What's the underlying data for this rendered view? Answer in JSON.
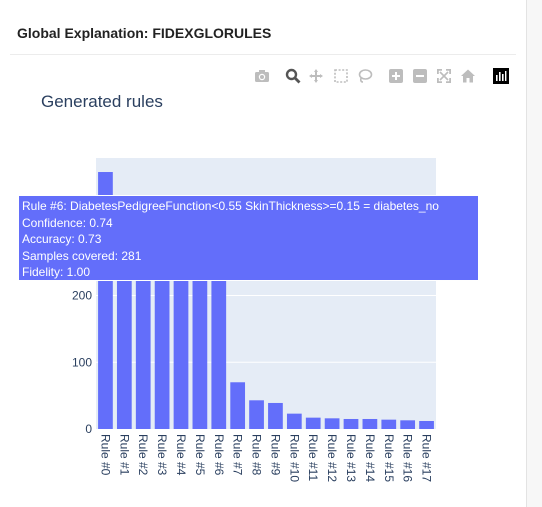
{
  "card": {
    "title": "Global Explanation: FIDEXGLORULES"
  },
  "toolbar": {
    "icons": [
      "camera-icon",
      "zoom-icon",
      "pan-icon",
      "box-select-icon",
      "lasso-icon",
      "zoom-in-icon",
      "zoom-out-icon",
      "autoscale-icon",
      "reset-axes-icon",
      "plotly-logo-icon"
    ]
  },
  "tooltip": {
    "rule": "Rule #6: DiabetesPedigreeFunction<0.55 SkinThickness>=0.15  = diabetes_no",
    "confidence": "Confidence: 0.74",
    "accuracy": "Accuracy: 0.73",
    "samples": "Samples covered: 281",
    "fidelity": "Fidelity: 1.00"
  },
  "chart_data": {
    "type": "bar",
    "title": "Generated rules",
    "categories": [
      "Rule #0",
      "Rule #1",
      "Rule #2",
      "Rule #3",
      "Rule #4",
      "Rule #5",
      "Rule #6",
      "Rule #7",
      "Rule #8",
      "Rule #9",
      "Rule #10",
      "Rule #11",
      "Rule #12",
      "Rule #13",
      "Rule #14",
      "Rule #15",
      "Rule #16",
      "Rule #17"
    ],
    "values": [
      385,
      281,
      281,
      281,
      281,
      281,
      281,
      70,
      43,
      39,
      23,
      17,
      16,
      15,
      15,
      14,
      13,
      12
    ],
    "yticks": [
      0,
      100,
      200
    ],
    "ylim": [
      0,
      406
    ],
    "xlabel": "",
    "ylabel": "",
    "grid": true,
    "colors": {
      "bar": "#636efa",
      "plot_bg": "#e5ecf6",
      "grid": "#ffffff",
      "tick_text": "#2a3f5f"
    }
  }
}
